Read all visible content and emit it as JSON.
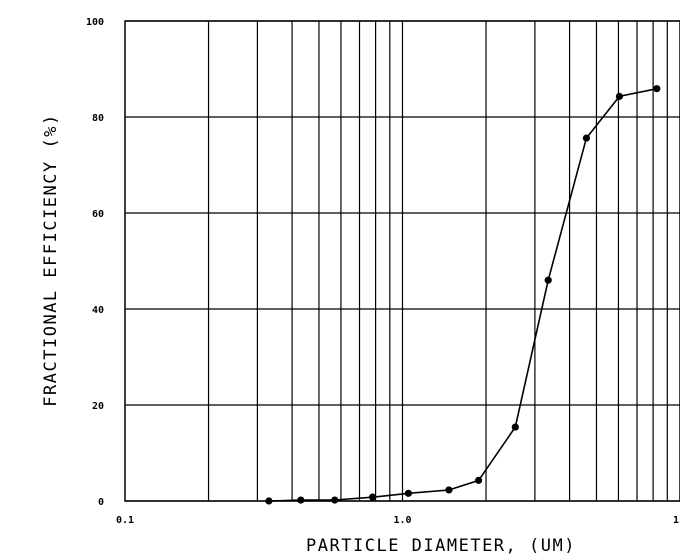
{
  "chart_data": {
    "type": "line",
    "title": "",
    "xlabel": "PARTICLE DIAMETER, (UM)",
    "ylabel": "FRACTIONAL EFFICIENCY (%)",
    "x_scale": "log",
    "xlim": [
      0.1,
      10
    ],
    "ylim": [
      0,
      100
    ],
    "grid": true,
    "x_tick_labels": [
      "0.1",
      "1.0",
      "1"
    ],
    "y_tick_labels": [
      "0",
      "20",
      "40",
      "60",
      "80",
      "100"
    ],
    "y_ticks": [
      0,
      20,
      40,
      60,
      80,
      100
    ],
    "series": [
      {
        "x": [
          0.33,
          0.43,
          0.57,
          0.78,
          1.05,
          1.47,
          1.88,
          2.55,
          3.35,
          4.6,
          6.05,
          8.25
        ],
        "y": [
          0,
          0.2,
          0.2,
          0.8,
          1.6,
          2.3,
          4.3,
          15.4,
          46,
          75.6,
          84.3,
          85.9
        ]
      }
    ],
    "line_color": "#000000",
    "marker_color": "#000000"
  }
}
